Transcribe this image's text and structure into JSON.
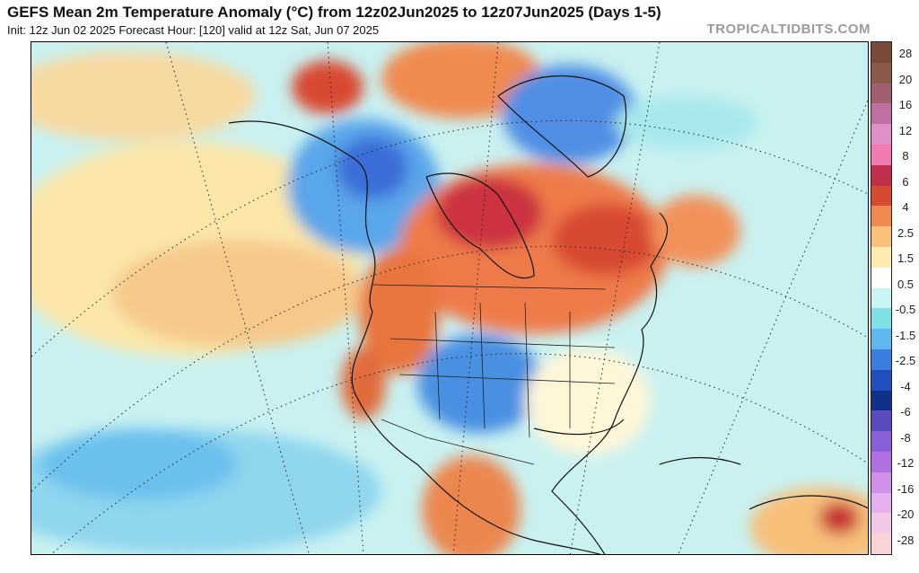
{
  "header": {
    "title": "GEFS Mean 2m Temperature Anomaly (°C) from 12z02Jun2025 to 12z07Jun2025 (Days 1-5)",
    "subtitle": "Init: 12z Jun 02 2025   Forecast Hour: [120]   valid at 12z Sat, Jun 07 2025",
    "watermark": "TROPICALTIDBITS.COM"
  },
  "colorbar": {
    "labels": [
      "28",
      "20",
      "16",
      "12",
      "8",
      "6",
      "4",
      "2.5",
      "1.5",
      "0.5",
      "-0.5",
      "-1.5",
      "-2.5",
      "-4",
      "-6",
      "-8",
      "-12",
      "-16",
      "-20",
      "-28"
    ],
    "colors": [
      "#7a4a3a",
      "#8a5a4a",
      "#a06070",
      "#c070a0",
      "#e090c8",
      "#f07bb0",
      "#c0304a",
      "#d84a30",
      "#f08a50",
      "#f8c07a",
      "#fdebb0",
      "#ffffff",
      "#c8f4f4",
      "#80e0e8",
      "#60b8f0",
      "#3a7ee0",
      "#2050c0",
      "#10308a",
      "#5a4ac0",
      "#8a60d8",
      "#b070e0",
      "#d090ea",
      "#e6b0f0",
      "#f0c8e6",
      "#fad4d4"
    ]
  }
}
